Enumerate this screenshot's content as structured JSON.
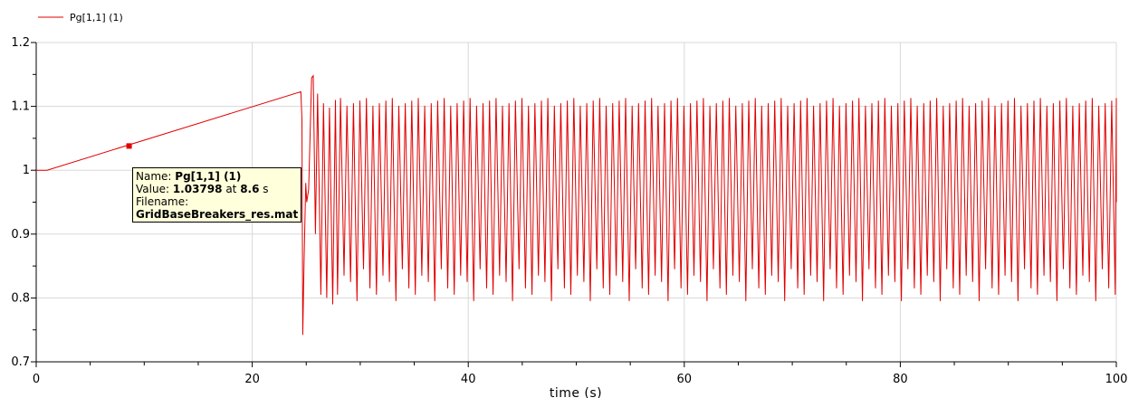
{
  "chart_data": {
    "type": "line",
    "xlabel": "time (s)",
    "ylabel": "",
    "xlim": [
      0,
      100
    ],
    "ylim": [
      0.7,
      1.2
    ],
    "xticks": [
      0,
      20,
      40,
      60,
      80,
      100
    ],
    "yticks": [
      0.7,
      0.8,
      0.9,
      1,
      1.1,
      1.2
    ],
    "grid": true,
    "legend_position": "top-left",
    "series": [
      {
        "name": "Pg[1,1] (1)",
        "color": "#e00000",
        "description_points": {
          "flat_start": [
            [
              0,
              1.0
            ],
            [
              1,
              1.0
            ]
          ],
          "ramp": [
            [
              1,
              1.0
            ],
            [
              24.5,
              1.123
            ]
          ],
          "oscillation_start_s": 24.6,
          "oscillation_period_s": 0.6,
          "oscillation_peak": 1.113,
          "oscillation_trough": 0.805,
          "first_trough": 0.742
        }
      }
    ],
    "marker": {
      "x": 8.6,
      "y": 1.03798
    }
  },
  "tooltip": {
    "name_label": "Name:",
    "name_value": "Pg[1,1] (1)",
    "value_label": "Value:",
    "value_value": "1.03798",
    "at_label": "at",
    "time_value": "8.6",
    "time_unit": "s",
    "filename_label": "Filename:",
    "filename_value": "GridBaseBreakers_res.mat"
  }
}
